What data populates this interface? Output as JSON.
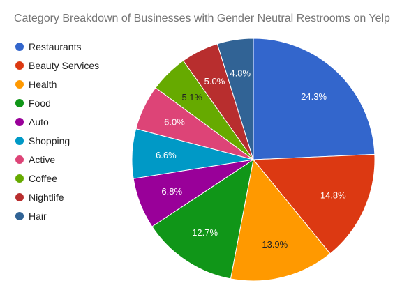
{
  "chart_data": {
    "type": "pie",
    "title": "Category Breakdown of Businesses with Gender Neutral Restrooms on Yelp",
    "legend_position": "left",
    "slices": [
      {
        "label": "Restaurants",
        "value": 24.3,
        "display": "24.3%",
        "color": "#3366cc",
        "label_color": "#ffffff"
      },
      {
        "label": "Beauty Services",
        "value": 14.8,
        "display": "14.8%",
        "color": "#dc3912",
        "label_color": "#ffffff"
      },
      {
        "label": "Health",
        "value": 13.9,
        "display": "13.9%",
        "color": "#ff9900",
        "label_color": "#222222"
      },
      {
        "label": "Food",
        "value": 12.7,
        "display": "12.7%",
        "color": "#109618",
        "label_color": "#ffffff"
      },
      {
        "label": "Auto",
        "value": 6.8,
        "display": "6.8%",
        "color": "#990099",
        "label_color": "#ffffff"
      },
      {
        "label": "Shopping",
        "value": 6.6,
        "display": "6.6%",
        "color": "#0099c6",
        "label_color": "#ffffff"
      },
      {
        "label": "Active",
        "value": 6.0,
        "display": "6.0%",
        "color": "#dd4477",
        "label_color": "#ffffff"
      },
      {
        "label": "Coffee",
        "value": 5.1,
        "display": "5.1%",
        "color": "#66aa00",
        "label_color": "#222222"
      },
      {
        "label": "Nightlife",
        "value": 5.0,
        "display": "5.0%",
        "color": "#b82e2e",
        "label_color": "#ffffff"
      },
      {
        "label": "Hair",
        "value": 4.8,
        "display": "4.8%",
        "color": "#316395",
        "label_color": "#ffffff"
      }
    ]
  }
}
